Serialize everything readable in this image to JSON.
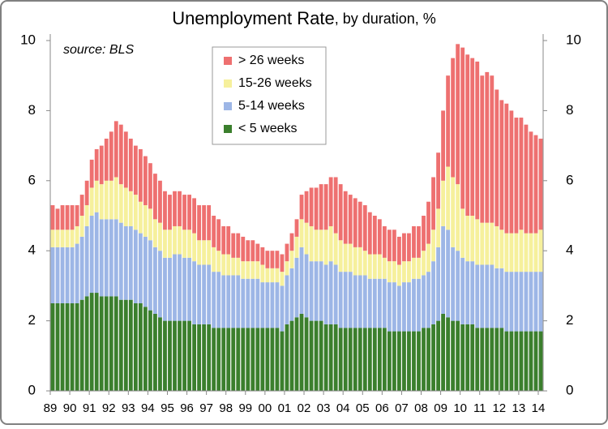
{
  "chart_data": {
    "type": "stacked_bar",
    "title": "Unemployment Rate",
    "subtitle": ", by duration, %",
    "annotation": "source: BLS",
    "categories": [
      "89",
      null,
      null,
      null,
      "90",
      null,
      null,
      null,
      "91",
      null,
      null,
      null,
      "92",
      null,
      null,
      null,
      "93",
      null,
      null,
      null,
      "94",
      null,
      null,
      null,
      "95",
      null,
      null,
      null,
      "96",
      null,
      null,
      null,
      "97",
      null,
      null,
      null,
      "98",
      null,
      null,
      null,
      "99",
      null,
      null,
      null,
      "00",
      null,
      null,
      null,
      "01",
      null,
      null,
      null,
      "02",
      null,
      null,
      null,
      "03",
      null,
      null,
      null,
      "04",
      null,
      null,
      null,
      "05",
      null,
      null,
      null,
      "06",
      null,
      null,
      null,
      "07",
      null,
      null,
      null,
      "08",
      null,
      null,
      null,
      "09",
      null,
      null,
      null,
      "10",
      null,
      null,
      null,
      "11",
      null,
      null,
      null,
      "12",
      null,
      null,
      null,
      "13",
      null,
      null,
      null,
      "14"
    ],
    "series": [
      {
        "name": "< 5 weeks",
        "color": "#3b7f2d",
        "values": [
          2.5,
          2.5,
          2.5,
          2.5,
          2.5,
          2.5,
          2.6,
          2.7,
          2.8,
          2.8,
          2.7,
          2.7,
          2.7,
          2.7,
          2.6,
          2.6,
          2.6,
          2.5,
          2.5,
          2.4,
          2.3,
          2.2,
          2.1,
          2.0,
          2.0,
          2.0,
          2.0,
          2.0,
          2.0,
          1.9,
          1.9,
          1.9,
          1.9,
          1.8,
          1.8,
          1.8,
          1.8,
          1.8,
          1.8,
          1.8,
          1.8,
          1.8,
          1.8,
          1.8,
          1.8,
          1.8,
          1.8,
          1.7,
          1.9,
          2.0,
          2.1,
          2.2,
          2.1,
          2.0,
          2.0,
          2.0,
          1.9,
          1.9,
          1.9,
          1.8,
          1.8,
          1.8,
          1.8,
          1.8,
          1.8,
          1.8,
          1.8,
          1.8,
          1.8,
          1.7,
          1.7,
          1.7,
          1.7,
          1.7,
          1.7,
          1.7,
          1.8,
          1.8,
          1.9,
          2.0,
          2.2,
          2.1,
          2.0,
          2.0,
          1.9,
          1.9,
          1.9,
          1.8,
          1.8,
          1.8,
          1.8,
          1.8,
          1.8,
          1.7,
          1.7,
          1.7,
          1.7,
          1.7,
          1.7,
          1.7,
          1.7
        ]
      },
      {
        "name": "5-14 weeks",
        "color": "#9db6e6",
        "values": [
          1.6,
          1.6,
          1.6,
          1.6,
          1.6,
          1.7,
          1.8,
          2.0,
          2.2,
          2.3,
          2.2,
          2.2,
          2.2,
          2.2,
          2.2,
          2.1,
          2.1,
          2.1,
          2.0,
          2.0,
          2.0,
          1.9,
          1.9,
          1.8,
          1.8,
          1.9,
          1.9,
          1.8,
          1.8,
          1.8,
          1.7,
          1.7,
          1.7,
          1.6,
          1.6,
          1.5,
          1.5,
          1.5,
          1.5,
          1.4,
          1.4,
          1.4,
          1.4,
          1.3,
          1.3,
          1.3,
          1.3,
          1.3,
          1.4,
          1.5,
          1.7,
          1.9,
          1.8,
          1.7,
          1.7,
          1.7,
          1.7,
          1.8,
          1.7,
          1.6,
          1.6,
          1.6,
          1.5,
          1.5,
          1.5,
          1.4,
          1.4,
          1.4,
          1.4,
          1.4,
          1.4,
          1.3,
          1.4,
          1.4,
          1.5,
          1.5,
          1.5,
          1.6,
          1.8,
          2.1,
          2.5,
          2.5,
          2.1,
          2.0,
          1.9,
          1.8,
          1.8,
          1.8,
          1.8,
          1.8,
          1.8,
          1.7,
          1.7,
          1.7,
          1.7,
          1.7,
          1.7,
          1.7,
          1.7,
          1.7,
          1.7
        ]
      },
      {
        "name": "15-26 weeks",
        "color": "#f6f09c",
        "values": [
          0.5,
          0.5,
          0.5,
          0.5,
          0.5,
          0.5,
          0.6,
          0.6,
          0.8,
          0.9,
          1.0,
          1.1,
          1.1,
          1.2,
          1.1,
          1.1,
          1.0,
          1.0,
          0.9,
          0.9,
          0.9,
          0.8,
          0.8,
          0.8,
          0.8,
          0.8,
          0.8,
          0.8,
          0.8,
          0.8,
          0.7,
          0.7,
          0.7,
          0.7,
          0.6,
          0.6,
          0.6,
          0.5,
          0.5,
          0.5,
          0.5,
          0.5,
          0.5,
          0.5,
          0.4,
          0.4,
          0.4,
          0.4,
          0.4,
          0.5,
          0.6,
          0.8,
          0.9,
          1.0,
          0.9,
          0.9,
          1.0,
          1.0,
          0.9,
          0.9,
          0.8,
          0.8,
          0.8,
          0.8,
          0.7,
          0.7,
          0.7,
          0.7,
          0.6,
          0.6,
          0.6,
          0.6,
          0.6,
          0.6,
          0.6,
          0.6,
          0.7,
          0.8,
          0.9,
          1.1,
          1.3,
          1.8,
          2.0,
          1.9,
          1.4,
          1.3,
          1.3,
          1.3,
          1.2,
          1.2,
          1.2,
          1.2,
          1.1,
          1.1,
          1.1,
          1.1,
          1.2,
          1.1,
          1.1,
          1.1,
          1.2
        ]
      },
      {
        "name": "> 26 weeks",
        "color": "#ee7070",
        "values": [
          0.7,
          0.6,
          0.7,
          0.7,
          0.7,
          0.6,
          0.6,
          0.7,
          0.8,
          0.9,
          1.1,
          1.2,
          1.4,
          1.6,
          1.7,
          1.6,
          1.5,
          1.4,
          1.5,
          1.4,
          1.3,
          1.3,
          1.2,
          1.1,
          1.0,
          1.0,
          1.0,
          1.0,
          1.0,
          1.0,
          1.0,
          1.0,
          1.0,
          0.9,
          0.9,
          0.8,
          0.8,
          0.7,
          0.7,
          0.7,
          0.6,
          0.6,
          0.5,
          0.5,
          0.5,
          0.5,
          0.5,
          0.5,
          0.5,
          0.5,
          0.5,
          0.7,
          0.9,
          1.1,
          1.2,
          1.3,
          1.3,
          1.4,
          1.6,
          1.6,
          1.5,
          1.4,
          1.4,
          1.3,
          1.3,
          1.2,
          1.1,
          1.0,
          0.9,
          0.9,
          0.9,
          0.8,
          0.8,
          0.8,
          0.9,
          0.9,
          1.0,
          1.2,
          1.5,
          1.6,
          2.0,
          2.6,
          3.4,
          4.0,
          4.6,
          4.6,
          4.5,
          4.5,
          4.2,
          4.3,
          4.2,
          3.9,
          3.7,
          3.7,
          3.5,
          3.3,
          3.2,
          3.1,
          2.9,
          2.8,
          2.6
        ]
      }
    ],
    "ylim": [
      0,
      10
    ],
    "yticks": [
      0,
      2,
      4,
      6,
      8,
      10
    ],
    "y2lim": [
      0,
      10
    ],
    "y2ticks": [
      0,
      2,
      4,
      6,
      8,
      10
    ]
  }
}
